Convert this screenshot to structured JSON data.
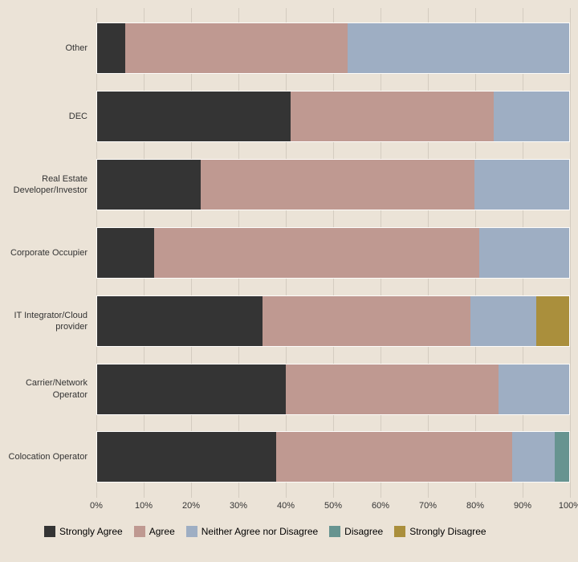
{
  "chart": {
    "type": "stacked-horizontal-bar",
    "background_color": "#ebe3d7",
    "grid_color": "#d4ccc0",
    "bar_border_color": "#fdfcfa",
    "xlim": [
      0,
      100
    ],
    "xtick_step": 10,
    "xtick_suffix": "%",
    "label_fontsize": 11,
    "legend_fontsize": 12,
    "series": [
      {
        "key": "strongly_agree",
        "label": "Strongly Agree",
        "color": "#343434"
      },
      {
        "key": "agree",
        "label": "Agree",
        "color": "#bf9991"
      },
      {
        "key": "neither",
        "label": "Neither Agree nor Disagree",
        "color": "#9eaec3"
      },
      {
        "key": "disagree",
        "label": "Disagree",
        "color": "#679490"
      },
      {
        "key": "strongly_disagree",
        "label": "Strongly Disagree",
        "color": "#aa8f3c"
      }
    ],
    "categories": [
      {
        "label": "Other",
        "values": {
          "strongly_agree": 6,
          "agree": 47,
          "neither": 47,
          "disagree": 0,
          "strongly_disagree": 0
        }
      },
      {
        "label": "DEC",
        "values": {
          "strongly_agree": 41,
          "agree": 43,
          "neither": 16,
          "disagree": 0,
          "strongly_disagree": 0
        }
      },
      {
        "label": "Real Estate Developer/Investor",
        "values": {
          "strongly_agree": 22,
          "agree": 58,
          "neither": 20,
          "disagree": 0,
          "strongly_disagree": 0
        }
      },
      {
        "label": "Corporate Occupier",
        "values": {
          "strongly_agree": 12,
          "agree": 69,
          "neither": 19,
          "disagree": 0,
          "strongly_disagree": 0
        }
      },
      {
        "label": "IT Integrator/Cloud provider",
        "values": {
          "strongly_agree": 35,
          "agree": 44,
          "neither": 14,
          "disagree": 0,
          "strongly_disagree": 7
        }
      },
      {
        "label": "Carrier/Network Operator",
        "values": {
          "strongly_agree": 40,
          "agree": 45,
          "neither": 15,
          "disagree": 0,
          "strongly_disagree": 0
        }
      },
      {
        "label": "Colocation Operator",
        "values": {
          "strongly_agree": 38,
          "agree": 50,
          "neither": 9,
          "disagree": 3,
          "strongly_disagree": 0
        }
      }
    ]
  }
}
